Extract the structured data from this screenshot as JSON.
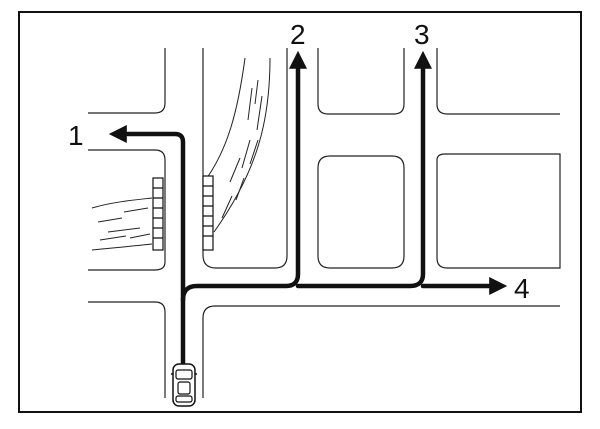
{
  "diagram": {
    "routes": [
      {
        "id": "route-1",
        "label": "1",
        "direction": "left"
      },
      {
        "id": "route-2",
        "label": "2",
        "direction": "up"
      },
      {
        "id": "route-3",
        "label": "3",
        "direction": "up"
      },
      {
        "id": "route-4",
        "label": "4",
        "direction": "right"
      }
    ],
    "car": {
      "icon": "car-icon",
      "heading": "up"
    },
    "colors": {
      "ink": "#111111",
      "paper": "#ffffff"
    }
  }
}
